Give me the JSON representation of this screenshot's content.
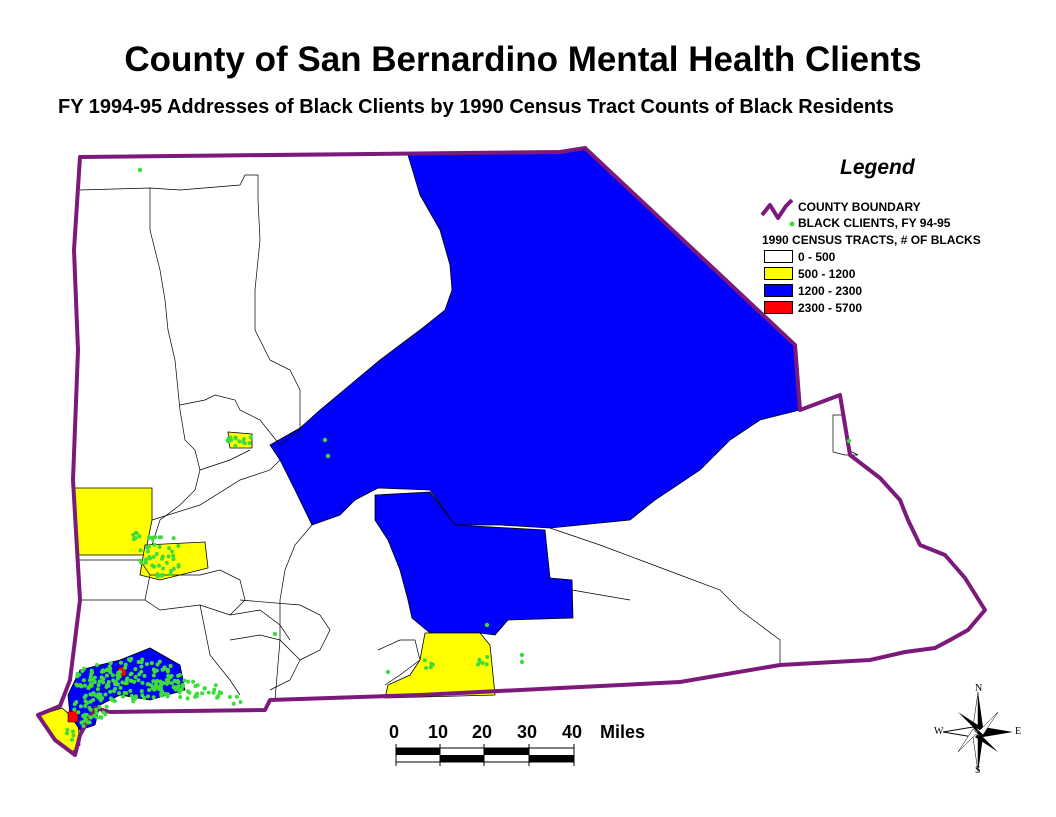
{
  "title": "County of San Bernardino Mental Health Clients",
  "subtitle": "FY 1994-95 Addresses of Black Clients by 1990 Census Tract Counts of Black Residents",
  "colors": {
    "boundary": "#7b1a7b",
    "client_dot": "#3cdc3c",
    "class_0_500": "#ffffff",
    "class_500_1200": "#ffff00",
    "class_1200_2300": "#0000ff",
    "class_2300_5700": "#ff0000"
  },
  "legend": {
    "title": "Legend",
    "boundary_label": "COUNTY BOUNDARY",
    "clients_label": "BLACK CLIENTS, FY 94-95",
    "tracts_label": "1990 CENSUS TRACTS, # OF BLACKS",
    "classes": [
      {
        "label": "0 - 500",
        "color": "#ffffff"
      },
      {
        "label": "500 - 1200",
        "color": "#ffff00"
      },
      {
        "label": "1200 - 2300",
        "color": "#0000ff"
      },
      {
        "label": "2300 - 5700",
        "color": "#ff0000"
      }
    ]
  },
  "scale_bar": {
    "ticks": [
      "0",
      "10",
      "20",
      "30",
      "40"
    ],
    "unit": "Miles"
  },
  "compass": {
    "n": "N",
    "s": "S",
    "e": "E",
    "w": "W"
  }
}
